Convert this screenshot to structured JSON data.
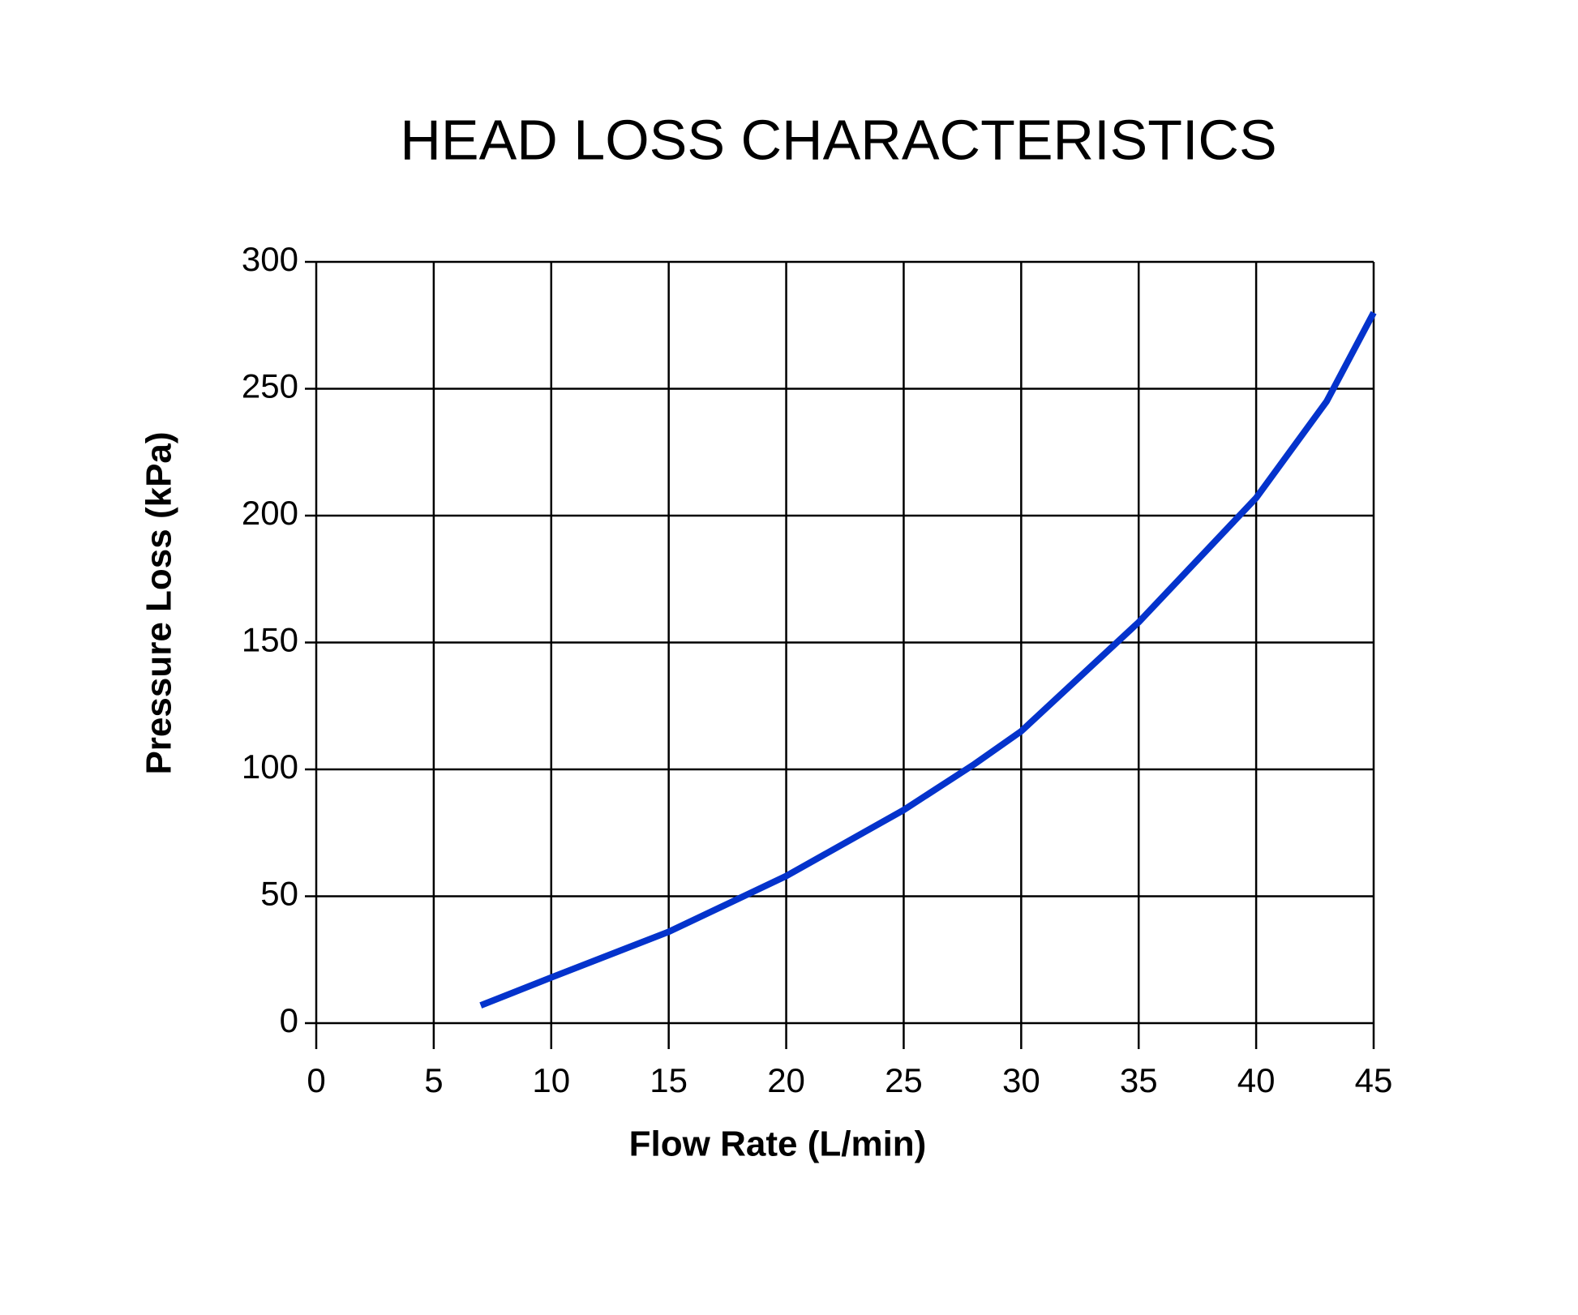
{
  "chart_data": {
    "type": "line",
    "title": "HEAD LOSS CHARACTERISTICS",
    "x_label": "Flow Rate (L/min)",
    "y_label": "Pressure Loss (kPa)",
    "x": [
      7,
      10,
      15,
      20,
      25,
      28,
      30,
      35,
      40,
      43,
      45
    ],
    "values": [
      7,
      18,
      36,
      58,
      84,
      102,
      115,
      158,
      207,
      245,
      280
    ],
    "color": "#0433cc",
    "xlim": [
      0,
      45
    ],
    "xticks": [
      0,
      5,
      10,
      15,
      20,
      25,
      30,
      35,
      40,
      45
    ],
    "ylim": [
      0,
      300
    ],
    "yticks": [
      0,
      50,
      100,
      150,
      200,
      250,
      300
    ],
    "grid": true
  }
}
